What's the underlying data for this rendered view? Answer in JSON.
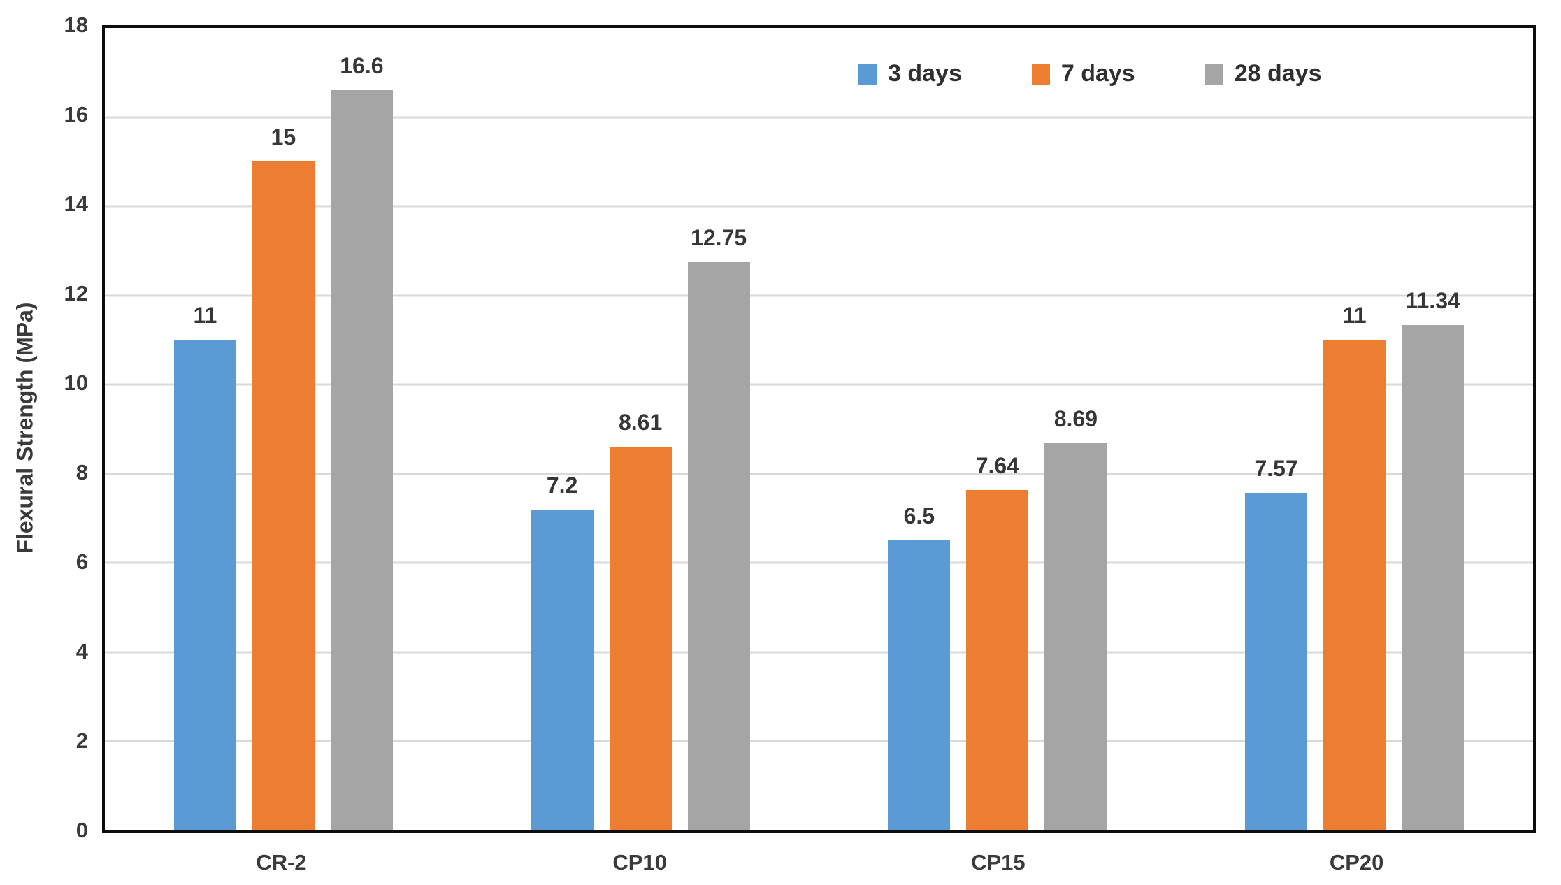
{
  "chart_data": {
    "type": "bar",
    "title": "",
    "xlabel": "",
    "ylabel": "Flexural Strength (MPa)",
    "categories": [
      "CR-2",
      "CP10",
      "CP15",
      "CP20"
    ],
    "series": [
      {
        "name": "3 days",
        "color": "#5B9BD5",
        "values": [
          11,
          7.2,
          6.5,
          7.57
        ]
      },
      {
        "name": "7 days",
        "color": "#ED7D31",
        "values": [
          15,
          8.61,
          7.64,
          11
        ]
      },
      {
        "name": "28 days",
        "color": "#A5A5A5",
        "values": [
          16.6,
          12.75,
          8.69,
          11.34
        ]
      }
    ],
    "value_labels": [
      [
        "11",
        "15",
        "16.6"
      ],
      [
        "7.2",
        "8.61",
        "12.75"
      ],
      [
        "6.5",
        "7.64",
        "8.69"
      ],
      [
        "7.57",
        "11",
        "11.34"
      ]
    ],
    "ylim": [
      0,
      18
    ],
    "ytick_step": 2,
    "yticks": [
      "0",
      "2",
      "4",
      "6",
      "8",
      "10",
      "12",
      "14",
      "16",
      "18"
    ],
    "grid": "horizontal",
    "legend_position": "inside-top-right"
  },
  "style": {
    "bar_colors": {
      "blue": "#5B9BD5",
      "orange": "#ED7D31",
      "gray": "#A5A5A5"
    },
    "gridline_color": "#D9D9D9",
    "axis_border_color": "#0D0D0D",
    "text_color": "#383838",
    "background": "#FFFFFF"
  }
}
